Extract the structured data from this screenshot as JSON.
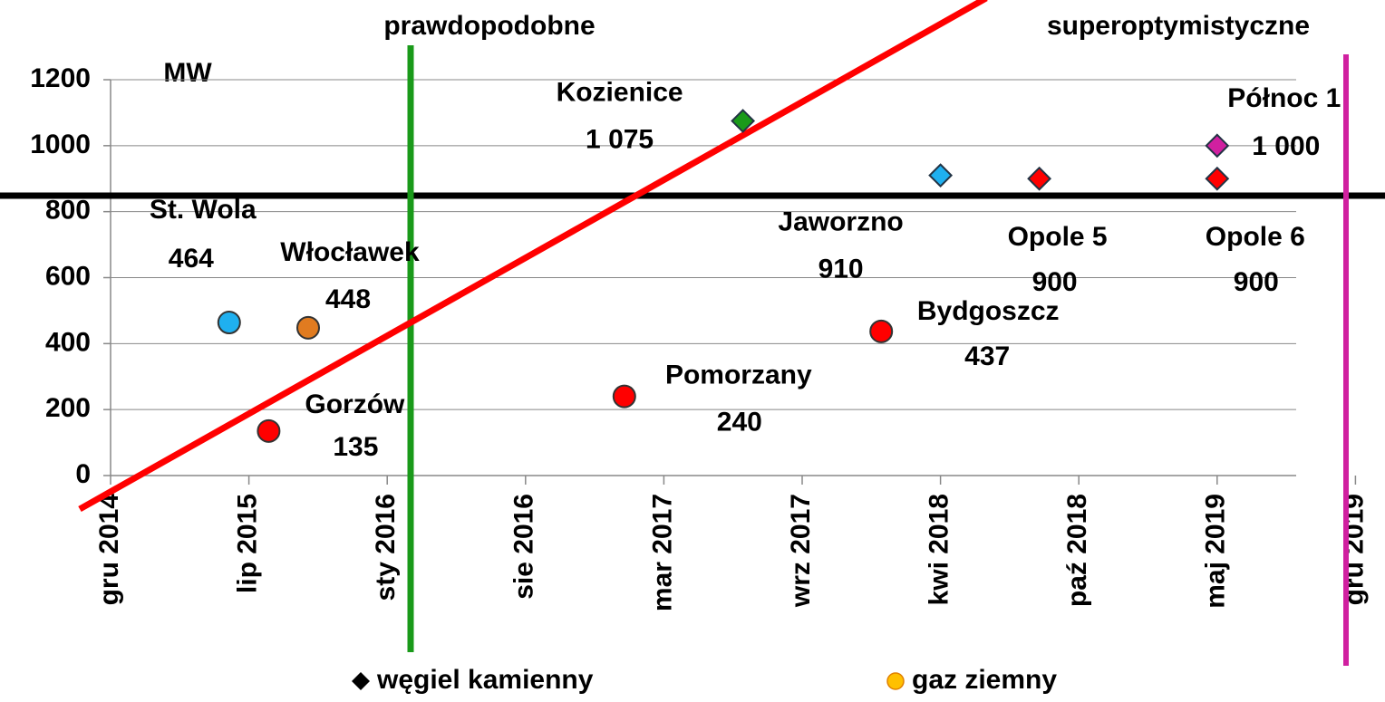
{
  "chart_data": {
    "type": "scatter",
    "y_label": "MW",
    "annotations": [
      "prawdopodobne",
      "superoptymistyczne"
    ],
    "xlim": [
      "2014-12",
      "2019-12"
    ],
    "xticks": [
      {
        "value": "2014-12",
        "label": "gru 2014"
      },
      {
        "value": "2015-07",
        "label": "lip 2015"
      },
      {
        "value": "2016-02",
        "label": "sty 2016"
      },
      {
        "value": "2016-09",
        "label": "sie 2016"
      },
      {
        "value": "2017-04",
        "label": "mar 2017"
      },
      {
        "value": "2017-11",
        "label": "wrz 2017"
      },
      {
        "value": "2018-06",
        "label": "kwi 2018"
      },
      {
        "value": "2019-01",
        "label": "paź 2018"
      },
      {
        "value": "2019-08",
        "label": "maj 2019"
      },
      {
        "value": "2020-03",
        "label": "gru 2019"
      }
    ],
    "ylim": [
      0,
      1200
    ],
    "yticks": [
      0,
      200,
      400,
      600,
      800,
      1000,
      1200
    ],
    "grid": true,
    "points": [
      {
        "name": "St. Wola",
        "x": "2015-06",
        "value": 464,
        "value_label": "464",
        "marker": "circle",
        "color": "#1fb0f0"
      },
      {
        "name": "Włocławek",
        "x": "2015-10",
        "value": 448,
        "value_label": "448",
        "marker": "circle",
        "color": "#e07b20"
      },
      {
        "name": "Gorzów",
        "x": "2015-08",
        "value": 135,
        "value_label": "135",
        "marker": "circle",
        "color": "#ff0000"
      },
      {
        "name": "Pomorzany",
        "x": "2017-02",
        "value": 240,
        "value_label": "240",
        "marker": "circle",
        "color": "#ff0000"
      },
      {
        "name": "Kozienice",
        "x": "2017-08",
        "value": 1075,
        "value_label": "1 075",
        "marker": "diamond",
        "color": "#1a9a1a"
      },
      {
        "name": "Bydgoszcz",
        "x": "2018-03",
        "value": 437,
        "value_label": "437",
        "marker": "circle",
        "color": "#ff0000"
      },
      {
        "name": "Jaworzno",
        "x": "2018-06",
        "value": 910,
        "value_label": "910",
        "marker": "diamond",
        "color": "#1fb0f0"
      },
      {
        "name": "Opole 5",
        "x": "2018-11",
        "value": 900,
        "value_label": "900",
        "marker": "diamond",
        "color": "#ff0000"
      },
      {
        "name": "Opole 6",
        "x": "2019-08",
        "value": 900,
        "value_label": "900",
        "marker": "diamond",
        "color": "#ff0000"
      },
      {
        "name": "Północ 1",
        "x": "2019-08",
        "value": 1000,
        "value_label": "1 000",
        "marker": "diamond",
        "color": "#d020a0"
      }
    ],
    "legend": [
      {
        "name": "węgiel kamienny",
        "marker": "diamond",
        "color": "#000000"
      },
      {
        "name": "gaz ziemny",
        "marker": "circle",
        "color": "#ffc000"
      }
    ]
  }
}
